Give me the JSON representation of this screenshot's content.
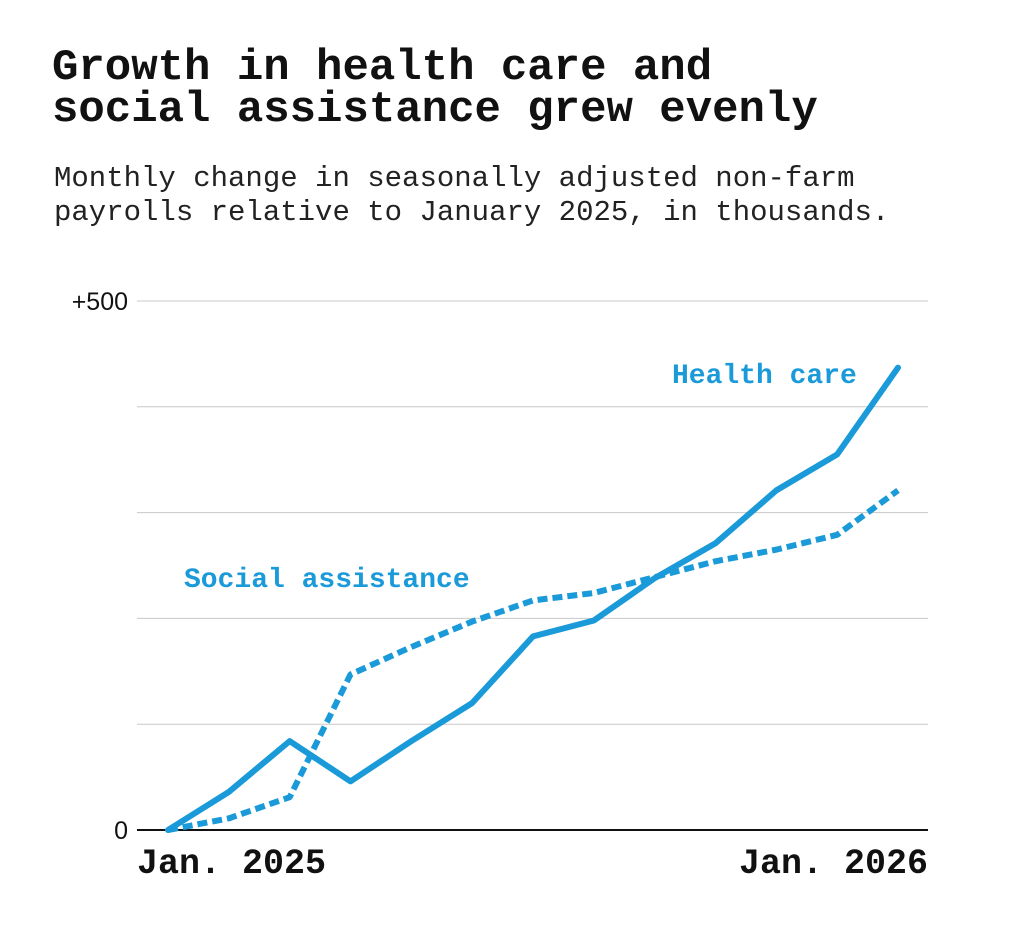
{
  "chart_data": {
    "type": "line",
    "title": "Growth in health care and social assistance grew evenly",
    "subtitle": "Monthly change in seasonally adjusted non-farm payrolls relative to January 2025, in thousands.",
    "categories": [
      "Jan. 2025",
      null,
      null,
      null,
      null,
      null,
      null,
      null,
      null,
      null,
      null,
      null,
      "Jan. 2026"
    ],
    "series": [
      {
        "name": "Health care",
        "color": "#1a9ad8",
        "linestyle": "solid",
        "values": [
          0,
          36,
          84,
          46,
          84,
          120,
          183,
          198,
          238,
          271,
          321,
          355,
          437
        ]
      },
      {
        "name": "Social assistance",
        "color": "#1a9ad8",
        "linestyle": "dashed",
        "values": [
          0,
          11,
          31,
          147,
          173,
          197,
          217,
          224,
          239,
          254,
          265,
          279,
          321
        ]
      }
    ],
    "ylim": [
      0,
      500
    ],
    "yticks": [
      0,
      {
        "value": 100,
        "label": null
      },
      {
        "value": 200,
        "label": null
      },
      {
        "value": 300,
        "label": null
      },
      {
        "value": 400,
        "label": null
      },
      {
        "value": 500,
        "label": "+500"
      }
    ],
    "grid": true
  }
}
